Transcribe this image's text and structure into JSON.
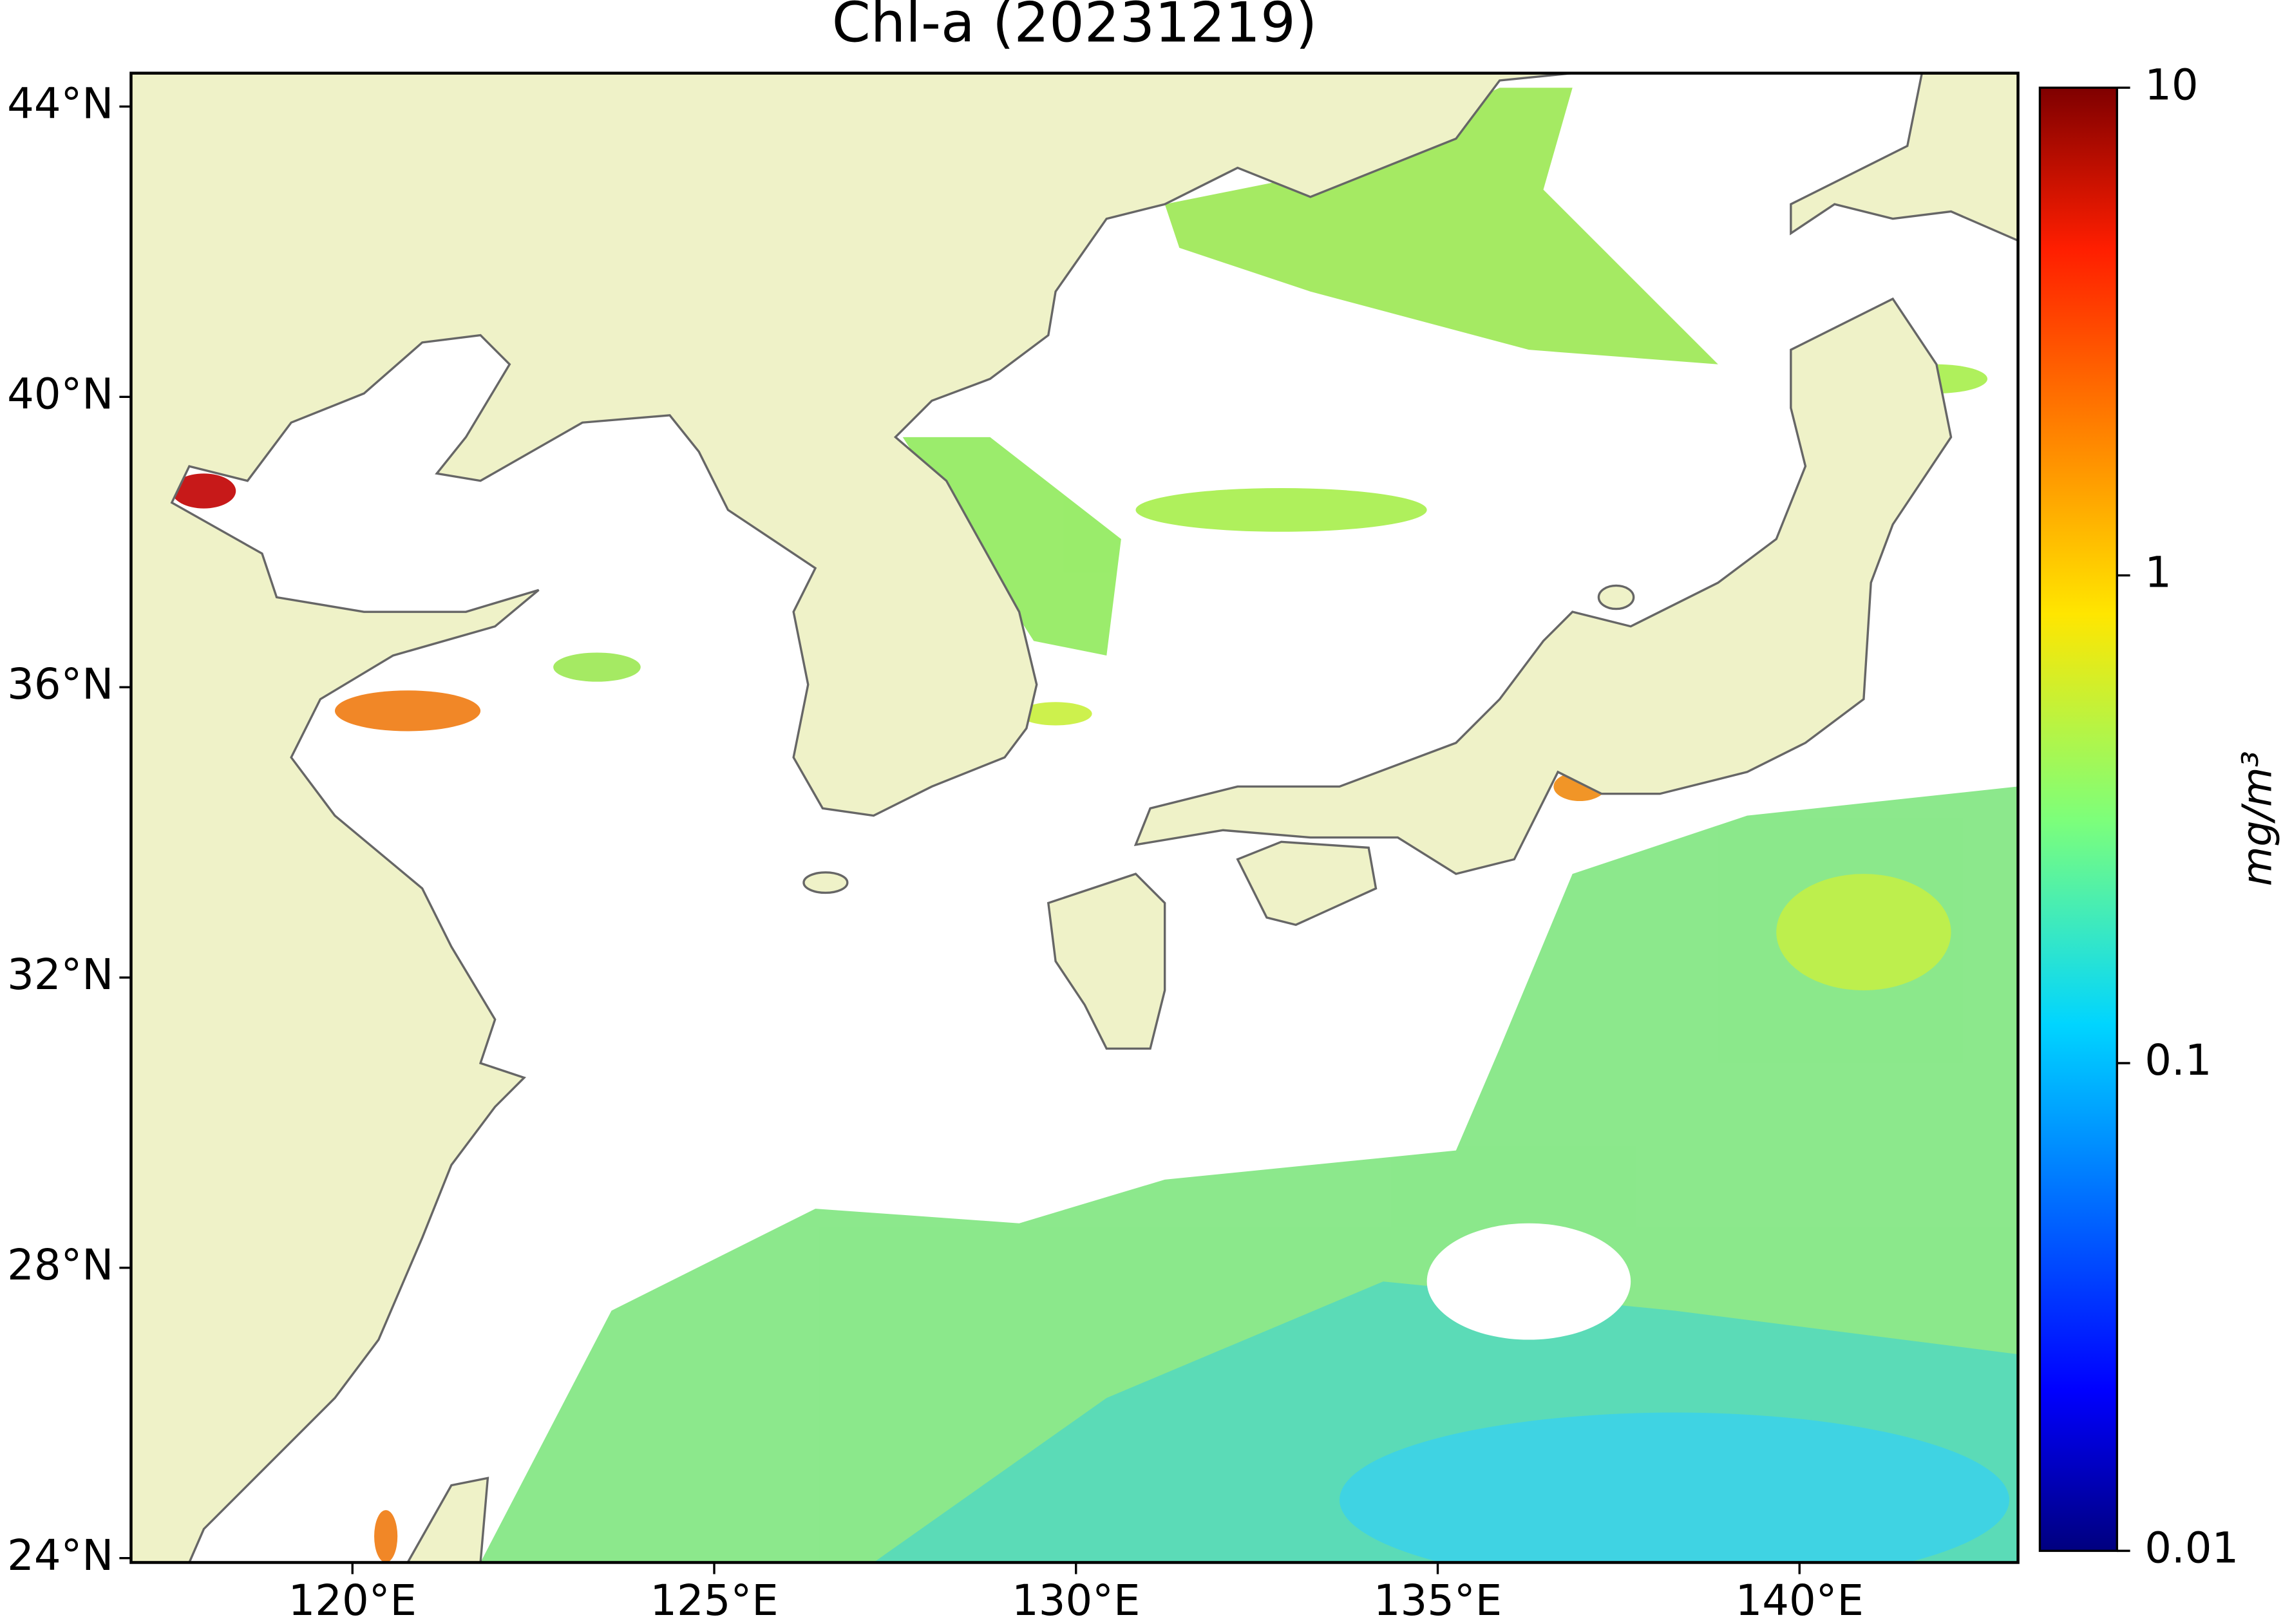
{
  "title": "Chl-a (20231219)",
  "map": {
    "xlim": [
      116.94,
      143.02
    ],
    "ylim": [
      23.94,
      44.46
    ],
    "xticks": [
      {
        "value": 120,
        "label": "120°E"
      },
      {
        "value": 125,
        "label": "125°E"
      },
      {
        "value": 130,
        "label": "130°E"
      },
      {
        "value": 135,
        "label": "135°E"
      },
      {
        "value": 140,
        "label": "140°E"
      }
    ],
    "yticks": [
      {
        "value": 24,
        "label": "24°N"
      },
      {
        "value": 28,
        "label": "28°N"
      },
      {
        "value": 32,
        "label": "32°N"
      },
      {
        "value": 36,
        "label": "36°N"
      },
      {
        "value": 40,
        "label": "40°N"
      },
      {
        "value": 44,
        "label": "44°N"
      }
    ],
    "land_color": "#eff2c8"
  },
  "colorbar": {
    "scale": "log",
    "lim": [
      0.01,
      10
    ],
    "ticks": [
      0.01,
      0.1,
      1,
      10
    ],
    "label": "mg/m³"
  }
}
